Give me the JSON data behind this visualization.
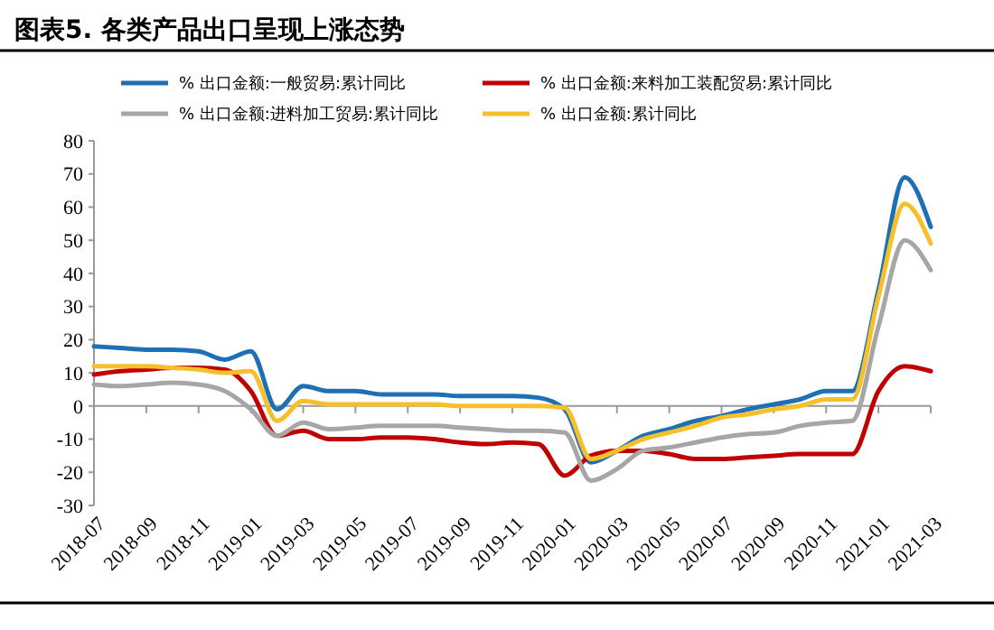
{
  "chart_data": {
    "type": "line",
    "title": "图表5.   各类产品出口呈现上涨态势",
    "categories": [
      "2018-07",
      null,
      "2018-09",
      null,
      "2018-11",
      null,
      "2019-01",
      null,
      "2019-03",
      null,
      "2019-05",
      null,
      "2019-07",
      null,
      "2019-09",
      null,
      "2019-11",
      null,
      "2020-01",
      null,
      "2020-03",
      null,
      "2020-05",
      null,
      "2020-07",
      null,
      "2020-09",
      null,
      "2020-11",
      null,
      "2021-01",
      null,
      "2021-03"
    ],
    "series": [
      {
        "name": "% 出口金额:一般贸易:累计同比",
        "color": "#1f6fb4",
        "values": [
          18,
          17.5,
          17,
          17,
          16.5,
          14,
          16.5,
          -1,
          6,
          4.5,
          4.5,
          3.5,
          3.5,
          3.5,
          3,
          3,
          3,
          2.5,
          -1,
          -17,
          -13.5,
          -9,
          -7,
          -4.5,
          -3,
          -1,
          0.5,
          2,
          4.5,
          4.5,
          35,
          69,
          54
        ]
      },
      {
        "name": "% 出口金额:来料加工装配贸易:累计同比",
        "color": "#c00000",
        "values": [
          9.5,
          10.5,
          11,
          11.5,
          11.5,
          11,
          4.5,
          -9,
          -7.5,
          -10,
          -10,
          -9.5,
          -9.5,
          -10,
          -11,
          -11.5,
          -11,
          -11.5,
          -21,
          -15,
          -13.5,
          -13.5,
          -14.5,
          -16,
          -16,
          -15.5,
          -15,
          -14.5,
          -14.5,
          -14.5,
          4.5,
          12,
          10.5
        ]
      },
      {
        "name": "% 出口金额:进料加工贸易:累计同比",
        "color": "#a6a6a6",
        "values": [
          6.5,
          6,
          6.5,
          7,
          6.5,
          4.5,
          -1,
          -9,
          -5,
          -7,
          -6.5,
          -6,
          -6,
          -6,
          -6.5,
          -7,
          -7.5,
          -7.5,
          -8,
          -22.5,
          -19,
          -13.5,
          -12.5,
          -11,
          -9.5,
          -8.5,
          -8,
          -6,
          -5,
          -4.5,
          24,
          50,
          41
        ]
      },
      {
        "name": "% 出口金额:累计同比",
        "color": "#f5c02b",
        "values": [
          12,
          12,
          12,
          11.5,
          11,
          10,
          10.5,
          -4.5,
          1.5,
          0.5,
          0.5,
          0.5,
          0.5,
          0.5,
          0,
          0,
          0,
          0,
          -0.5,
          -16,
          -13.5,
          -10,
          -8,
          -6,
          -3.5,
          -2.5,
          -1,
          0,
          2,
          2,
          33,
          61,
          49
        ]
      }
    ],
    "ylim": [
      -30,
      80
    ],
    "yticks": [
      -30,
      -20,
      -10,
      0,
      10,
      20,
      30,
      40,
      50,
      60,
      70,
      80
    ],
    "legend": "top",
    "line_style": "solid",
    "marker": "none"
  }
}
